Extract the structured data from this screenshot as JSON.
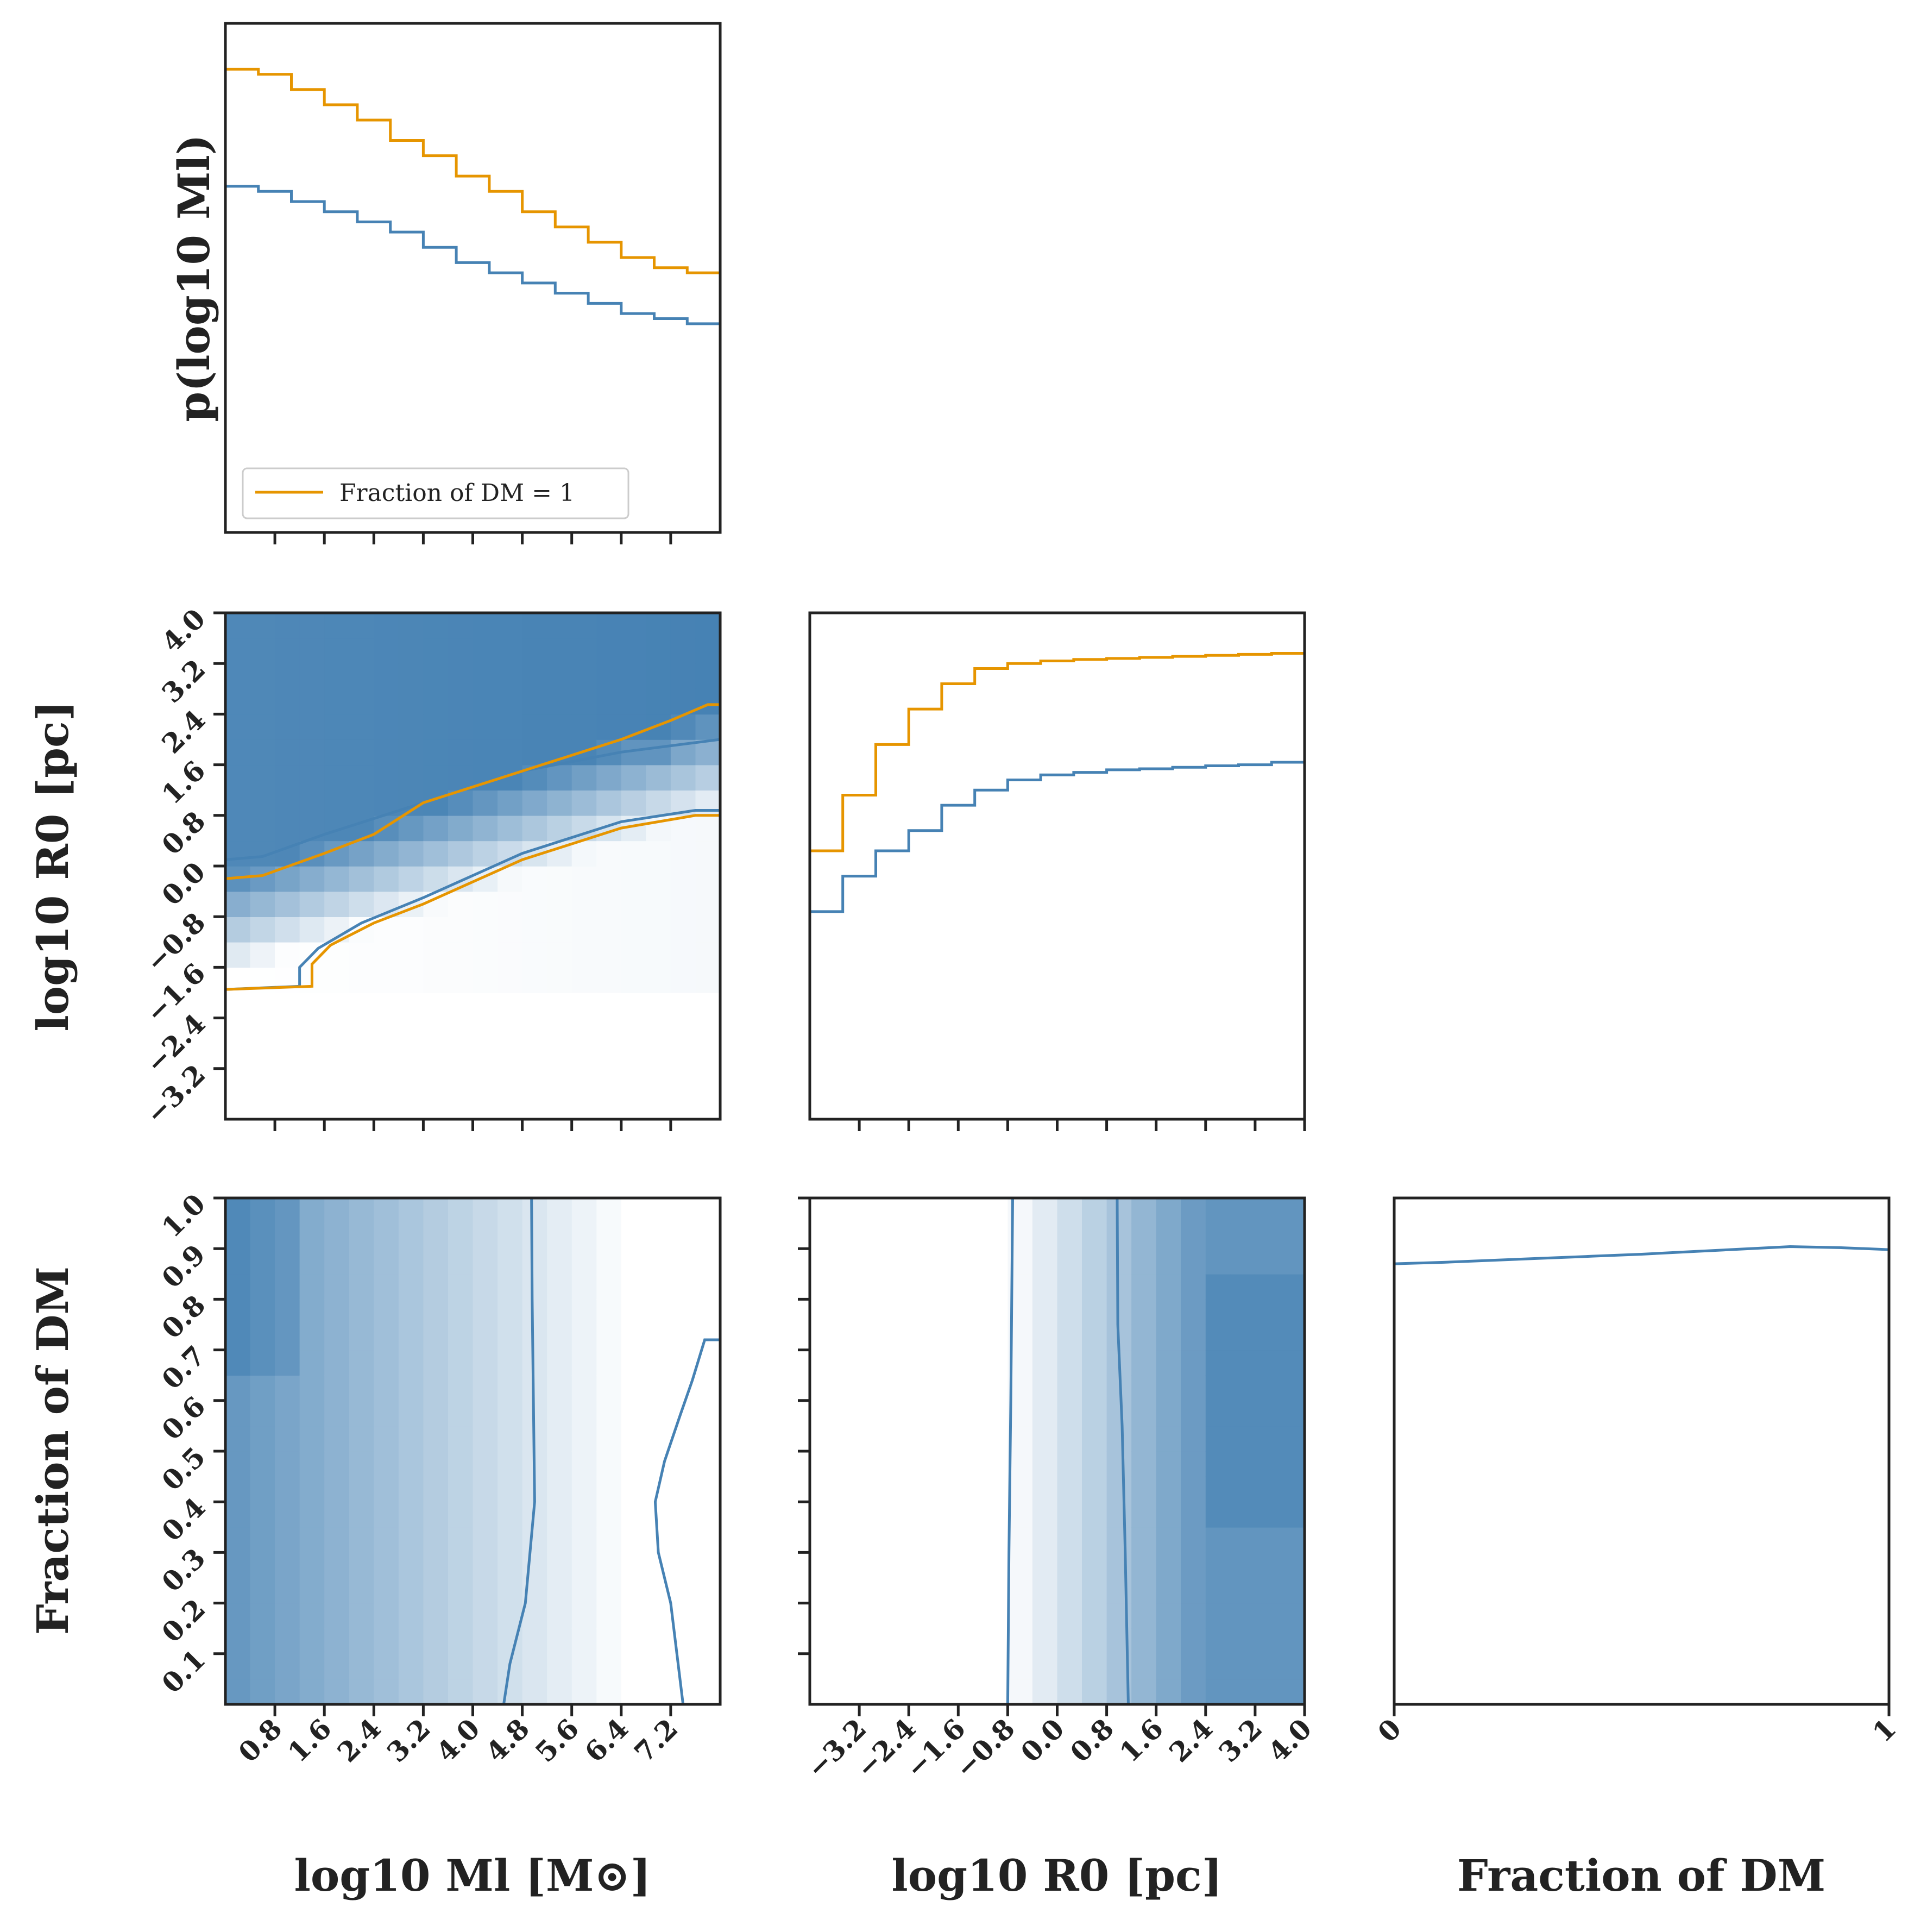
{
  "figure": {
    "colors": {
      "blue": "#4682b4",
      "orange": "#e69500",
      "axes": "#222222"
    },
    "legend_label": "Fraction of DM = 1"
  },
  "chart_data": [
    {
      "id": "hist_logM",
      "type": "line",
      "title": "",
      "xlabel": "",
      "ylabel": "p(log10 Ml)",
      "xlim": [
        0,
        8
      ],
      "ylim": [
        0,
        1
      ],
      "xticks": [
        0.8,
        1.6,
        2.4,
        3.2,
        4.0,
        4.8,
        5.6,
        6.4,
        7.2
      ],
      "xtick_labels_visible": false,
      "legend": {
        "entries": [
          "Fraction of DM = 1"
        ],
        "loc": "lower left"
      },
      "bin_edges": [
        0,
        0.533,
        1.067,
        1.6,
        2.133,
        2.667,
        3.2,
        3.733,
        4.267,
        4.8,
        5.333,
        5.867,
        6.4,
        6.933,
        7.467,
        8
      ],
      "series": [
        {
          "name": "Fraction of DM = 1",
          "color": "orange",
          "values": [
            0.91,
            0.9,
            0.87,
            0.84,
            0.81,
            0.77,
            0.74,
            0.7,
            0.67,
            0.63,
            0.6,
            0.57,
            0.54,
            0.52,
            0.51
          ]
        },
        {
          "name": "marginal",
          "color": "blue",
          "values": [
            0.68,
            0.67,
            0.65,
            0.63,
            0.61,
            0.59,
            0.56,
            0.53,
            0.51,
            0.49,
            0.47,
            0.45,
            0.43,
            0.42,
            0.41
          ]
        }
      ]
    },
    {
      "id": "joint_logM_logR",
      "type": "heatmap",
      "xlabel": "",
      "ylabel": "log10 R0 [pc]",
      "xlim": [
        0,
        8
      ],
      "ylim": [
        -4,
        4
      ],
      "xticks": [
        0.8,
        1.6,
        2.4,
        3.2,
        4.0,
        4.8,
        5.6,
        6.4,
        7.2
      ],
      "xtick_labels_visible": false,
      "yticks": [
        -3.2,
        -2.4,
        -1.6,
        -0.8,
        0.0,
        0.8,
        1.6,
        2.4,
        3.2,
        4.0
      ],
      "ytick_labels": [
        "−3.2",
        "−2.4",
        "−1.6",
        "−0.8",
        "0.0",
        "0.8",
        "1.6",
        "2.4",
        "3.2",
        "4.0"
      ],
      "contours": [
        {
          "name": "blue-upper",
          "color": "blue",
          "points": [
            [
              0,
              0.1
            ],
            [
              0.6,
              0.15
            ],
            [
              1.6,
              0.5
            ],
            [
              3.2,
              1.0
            ],
            [
              4.8,
              1.5
            ],
            [
              6.4,
              1.8
            ],
            [
              8,
              2.0
            ]
          ]
        },
        {
          "name": "orange-upper",
          "color": "orange",
          "points": [
            [
              0,
              -0.2
            ],
            [
              0.6,
              -0.15
            ],
            [
              1.6,
              0.2
            ],
            [
              2.4,
              0.5
            ],
            [
              3.2,
              1.0
            ],
            [
              4.8,
              1.5
            ],
            [
              6.4,
              2.0
            ],
            [
              7.2,
              2.3
            ],
            [
              7.8,
              2.55
            ],
            [
              8,
              2.55
            ]
          ]
        },
        {
          "name": "blue-lower",
          "color": "blue",
          "points": [
            [
              0,
              -1.95
            ],
            [
              1.2,
              -1.9
            ],
            [
              1.2,
              -1.6
            ],
            [
              1.5,
              -1.3
            ],
            [
              2.2,
              -0.9
            ],
            [
              3.2,
              -0.5
            ],
            [
              4.8,
              0.2
            ],
            [
              6.4,
              0.7
            ],
            [
              7.6,
              0.88
            ],
            [
              8,
              0.88
            ]
          ]
        },
        {
          "name": "orange-lower",
          "color": "orange",
          "points": [
            [
              0,
              -1.95
            ],
            [
              1.4,
              -1.9
            ],
            [
              1.4,
              -1.55
            ],
            [
              1.7,
              -1.25
            ],
            [
              2.4,
              -0.9
            ],
            [
              3.2,
              -0.6
            ],
            [
              4.8,
              0.1
            ],
            [
              6.4,
              0.6
            ],
            [
              7.6,
              0.8
            ],
            [
              8,
              0.8
            ]
          ]
        }
      ]
    },
    {
      "id": "hist_logR",
      "type": "line",
      "xlabel": "",
      "ylabel": "",
      "xlim": [
        -4,
        4
      ],
      "ylim": [
        0,
        1
      ],
      "xticks": [
        -3.2,
        -2.4,
        -1.6,
        -0.8,
        0.0,
        0.8,
        1.6,
        2.4,
        3.2,
        4.0
      ],
      "xtick_labels_visible": false,
      "bin_edges": [
        -4,
        -3.467,
        -2.933,
        -2.4,
        -1.867,
        -1.333,
        -0.8,
        -0.267,
        0.267,
        0.8,
        1.333,
        1.867,
        2.4,
        2.933,
        3.467,
        4
      ],
      "series": [
        {
          "name": "Fraction of DM = 1",
          "color": "orange",
          "values": [
            0.53,
            0.64,
            0.74,
            0.81,
            0.86,
            0.89,
            0.9,
            0.905,
            0.908,
            0.91,
            0.912,
            0.914,
            0.916,
            0.918,
            0.92
          ]
        },
        {
          "name": "marginal",
          "color": "blue",
          "values": [
            0.41,
            0.48,
            0.53,
            0.57,
            0.62,
            0.65,
            0.67,
            0.68,
            0.685,
            0.69,
            0.692,
            0.695,
            0.698,
            0.7,
            0.705
          ]
        }
      ]
    },
    {
      "id": "joint_logM_fdm",
      "type": "heatmap",
      "xlabel": "log10 Ml [M⊙]",
      "ylabel": "Fraction of DM",
      "xlim": [
        0,
        8
      ],
      "ylim": [
        0,
        1
      ],
      "xticks": [
        0.8,
        1.6,
        2.4,
        3.2,
        4.0,
        4.8,
        5.6,
        6.4,
        7.2
      ],
      "xtick_labels": [
        "0.8",
        "1.6",
        "2.4",
        "3.2",
        "4.0",
        "4.8",
        "5.6",
        "6.4",
        "7.2"
      ],
      "yticks": [
        0.1,
        0.2,
        0.3,
        0.4,
        0.5,
        0.6,
        0.7,
        0.8,
        0.9,
        1.0
      ],
      "ytick_labels": [
        "0.1",
        "0.2",
        "0.3",
        "0.4",
        "0.5",
        "0.6",
        "0.7",
        "0.8",
        "0.9",
        "1.0"
      ],
      "contours": [
        {
          "name": "blue-inner",
          "color": "blue",
          "points": [
            [
              4.5,
              0
            ],
            [
              4.6,
              0.08
            ],
            [
              4.85,
              0.2
            ],
            [
              5.0,
              0.4
            ],
            [
              4.98,
              0.6
            ],
            [
              4.96,
              0.8
            ],
            [
              4.95,
              1.0
            ]
          ]
        },
        {
          "name": "blue-outer",
          "color": "blue",
          "points": [
            [
              7.4,
              0
            ],
            [
              7.3,
              0.1
            ],
            [
              7.2,
              0.2
            ],
            [
              7.0,
              0.3
            ],
            [
              6.95,
              0.4
            ],
            [
              7.1,
              0.48
            ],
            [
              7.35,
              0.57
            ],
            [
              7.55,
              0.64
            ],
            [
              7.75,
              0.72
            ],
            [
              8,
              0.72
            ]
          ]
        }
      ]
    },
    {
      "id": "joint_logR_fdm",
      "type": "heatmap",
      "xlabel": "log10 R0 [pc]",
      "ylabel": "",
      "xlim": [
        -4,
        4
      ],
      "ylim": [
        0,
        1
      ],
      "xticks": [
        -3.2,
        -2.4,
        -1.6,
        -0.8,
        0.0,
        0.8,
        1.6,
        2.4,
        3.2,
        4.0
      ],
      "xtick_labels": [
        "−3.2",
        "−2.4",
        "−1.6",
        "−0.8",
        "0.0",
        "0.8",
        "1.6",
        "2.4",
        "3.2",
        "4.0"
      ],
      "yticks": [
        0.1,
        0.2,
        0.3,
        0.4,
        0.5,
        0.6,
        0.7,
        0.8,
        0.9,
        1.0
      ],
      "ytick_labels_visible": false,
      "contours": [
        {
          "name": "blue-left",
          "color": "blue",
          "points": [
            [
              -0.8,
              0
            ],
            [
              -0.78,
              0.3
            ],
            [
              -0.75,
              0.6
            ],
            [
              -0.72,
              1.0
            ]
          ]
        },
        {
          "name": "blue-right",
          "color": "blue",
          "points": [
            [
              1.15,
              0
            ],
            [
              1.1,
              0.3
            ],
            [
              1.05,
              0.55
            ],
            [
              0.98,
              0.75
            ],
            [
              0.97,
              1.0
            ]
          ]
        }
      ]
    },
    {
      "id": "hist_fdm",
      "type": "line",
      "xlabel": "Fraction of DM",
      "ylabel": "",
      "xlim": [
        0,
        1
      ],
      "ylim": [
        0,
        1
      ],
      "xticks": [
        0,
        1
      ],
      "xtick_labels": [
        "0",
        "1"
      ],
      "series": [
        {
          "name": "marginal",
          "color": "blue",
          "x": [
            0,
            0.1,
            0.2,
            0.3,
            0.4,
            0.5,
            0.6,
            0.7,
            0.8,
            0.9,
            1.0
          ],
          "values": [
            0.87,
            0.873,
            0.877,
            0.881,
            0.885,
            0.889,
            0.894,
            0.899,
            0.904,
            0.902,
            0.898
          ]
        }
      ]
    }
  ]
}
